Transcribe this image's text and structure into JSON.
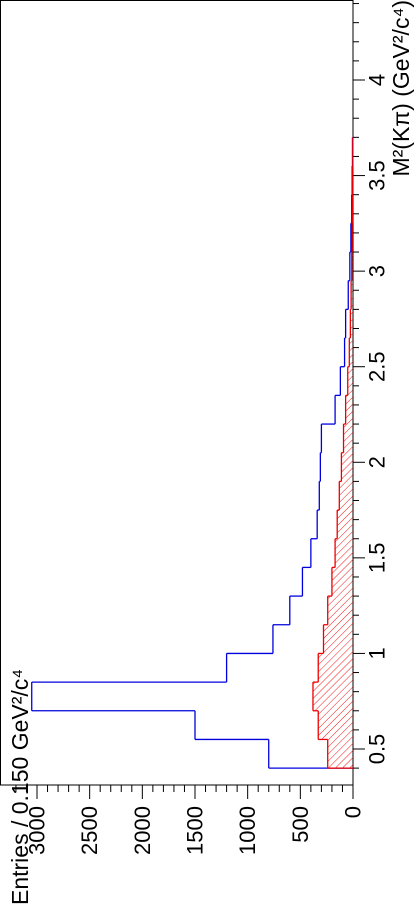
{
  "chart_data": {
    "type": "histogram",
    "orientation": "rotated-90-ccw",
    "xlabel": "M²(Kπ) (GeV²/c⁴)",
    "ylabel": "Entries / 0.150 GeV²/c⁴",
    "xlim": [
      0.3,
      4.6
    ],
    "ylim": [
      0,
      3250
    ],
    "x_ticks": [
      0.5,
      1,
      1.5,
      2,
      2.5,
      3,
      3.5,
      4
    ],
    "x_tick_labels": [
      "0.5",
      "1",
      "1.5",
      "2",
      "2.5",
      "3",
      "3.5",
      "4"
    ],
    "y_ticks": [
      0,
      500,
      1000,
      1500,
      2000,
      2500,
      3000
    ],
    "y_tick_labels": [
      "0",
      "500",
      "1000",
      "1500",
      "2000",
      "2500",
      "3000"
    ],
    "bin_edges": [
      0.4,
      0.55,
      0.7,
      0.85,
      1.0,
      1.15,
      1.3,
      1.45,
      1.6,
      1.75,
      1.9,
      2.05,
      2.2,
      2.35,
      2.5,
      2.65,
      2.8,
      2.95,
      3.1,
      3.25,
      3.4,
      3.55,
      3.7
    ],
    "series": [
      {
        "style": "outline",
        "color": "#0000dd",
        "values": [
          800,
          1500,
          3050,
          1200,
          760,
          600,
          480,
          400,
          340,
          320,
          310,
          300,
          170,
          120,
          80,
          70,
          45,
          30,
          20,
          12,
          8,
          5
        ]
      },
      {
        "style": "hatched",
        "color": "#ee0000",
        "values": [
          240,
          330,
          380,
          330,
          280,
          240,
          200,
          170,
          150,
          130,
          110,
          90,
          70,
          50,
          35,
          25,
          18,
          12,
          8,
          5,
          3,
          2
        ]
      }
    ]
  }
}
